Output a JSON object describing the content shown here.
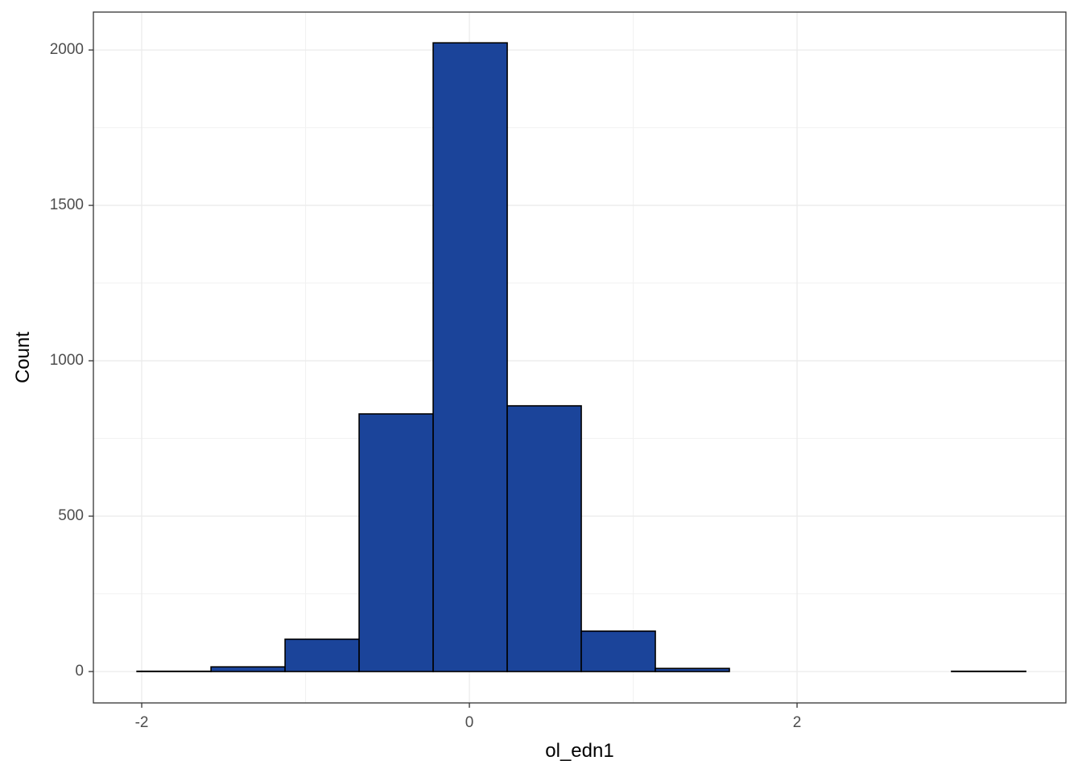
{
  "chart_data": {
    "type": "histogram",
    "x_label": "ol_edn1",
    "y_label": "Count",
    "bins": [
      -2.029,
      -1.577,
      -1.125,
      -0.673,
      -0.221,
      0.231,
      0.683,
      1.135,
      1.587,
      2.039,
      2.491,
      2.943,
      3.396
    ],
    "values": [
      1,
      15,
      104,
      829,
      2023,
      855,
      130,
      10,
      0,
      0,
      0,
      1
    ],
    "color": "#1b449a",
    "edge_color": "#000000",
    "xlim": [
      -2.295,
      3.641
    ],
    "ylim": [
      -101,
      2122
    ],
    "xticks": [
      -2,
      0,
      2
    ],
    "yticks": [
      0,
      500,
      1000,
      1500,
      2000
    ],
    "grid": true
  }
}
